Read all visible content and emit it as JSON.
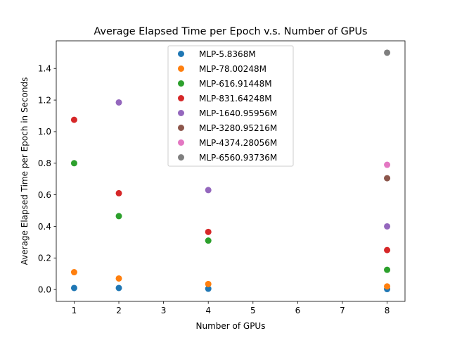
{
  "chart_data": {
    "type": "scatter",
    "title": "Average Elapsed Time per Epoch v.s. Number of GPUs",
    "xlabel": "Number of GPUs",
    "ylabel": "Average Elapsed Time per Epoch in Seconds",
    "xlim": [
      0.6,
      8.4
    ],
    "ylim": [
      -0.075,
      1.575
    ],
    "xticks": [
      1,
      2,
      3,
      4,
      5,
      6,
      7,
      8
    ],
    "yticks": [
      0.0,
      0.2,
      0.4,
      0.6,
      0.8,
      1.0,
      1.2,
      1.4
    ],
    "ytick_labels": [
      "0.0",
      "0.2",
      "0.4",
      "0.6",
      "0.8",
      "1.0",
      "1.2",
      "1.4"
    ],
    "grid": false,
    "legend_position": "top-center",
    "series": [
      {
        "name": "MLP-5.8368M",
        "color": "#1f77b4",
        "x": [
          1,
          2,
          4,
          8
        ],
        "y": [
          0.01,
          0.01,
          0.005,
          0.003
        ]
      },
      {
        "name": "MLP-78.00248M",
        "color": "#ff7f0e",
        "x": [
          1,
          2,
          4,
          8
        ],
        "y": [
          0.11,
          0.07,
          0.035,
          0.02
        ]
      },
      {
        "name": "MLP-616.91448M",
        "color": "#2ca02c",
        "x": [
          1,
          2,
          4,
          8
        ],
        "y": [
          0.8,
          0.465,
          0.31,
          0.125
        ]
      },
      {
        "name": "MLP-831.64248M",
        "color": "#d62728",
        "x": [
          1,
          2,
          4,
          8
        ],
        "y": [
          1.075,
          0.61,
          0.365,
          0.25
        ]
      },
      {
        "name": "MLP-1640.95956M",
        "color": "#9467bd",
        "x": [
          2,
          4,
          8
        ],
        "y": [
          1.185,
          0.63,
          0.4
        ]
      },
      {
        "name": "MLP-3280.95216M",
        "color": "#8c564b",
        "x": [
          8
        ],
        "y": [
          0.705
        ]
      },
      {
        "name": "MLP-4374.28056M",
        "color": "#e377c2",
        "x": [
          8
        ],
        "y": [
          0.79
        ]
      },
      {
        "name": "MLP-6560.93736M",
        "color": "#7f7f7f",
        "x": [
          8
        ],
        "y": [
          1.5
        ]
      }
    ]
  }
}
